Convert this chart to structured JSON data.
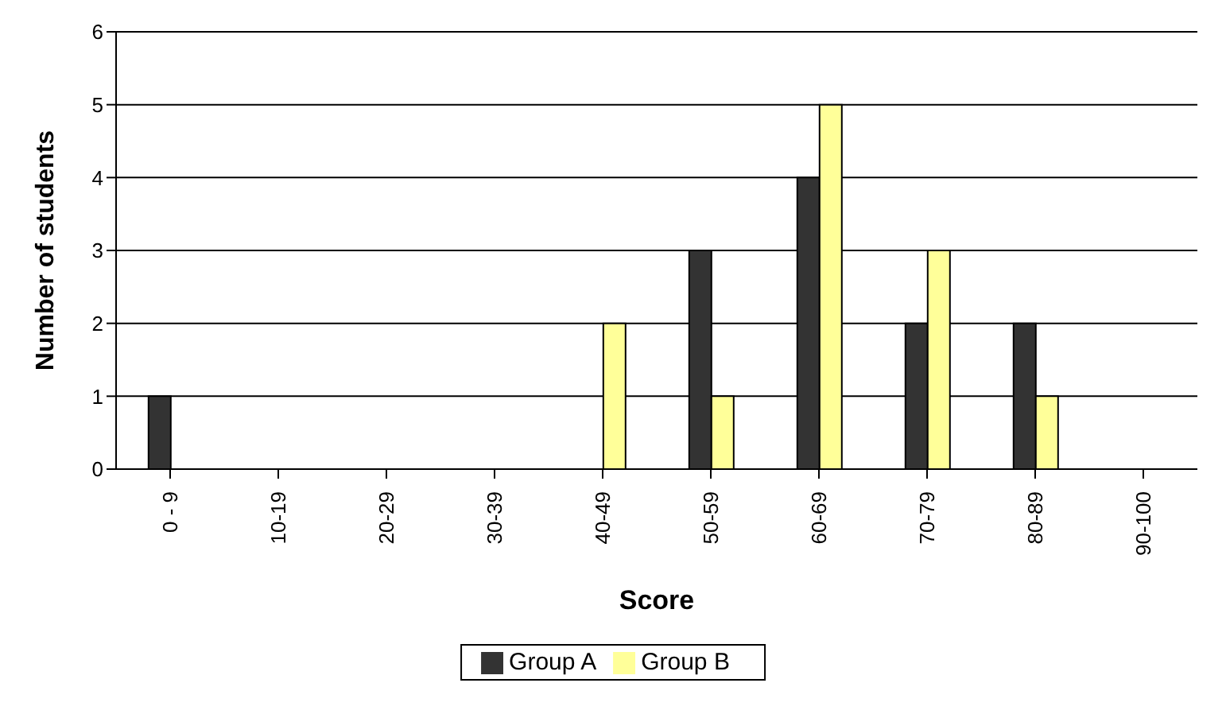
{
  "chart_data": {
    "type": "bar",
    "xlabel": "Score",
    "ylabel": "Number of students",
    "categories": [
      "0 - 9",
      "10-19",
      "20-29",
      "30-39",
      "40-49",
      "50-59",
      "60-69",
      "70-79",
      "80-89",
      "90-100"
    ],
    "series": [
      {
        "name": "Group A",
        "color": "#333333",
        "values": [
          1,
          0,
          0,
          0,
          0,
          3,
          4,
          2,
          2,
          0
        ]
      },
      {
        "name": "Group B",
        "color": "#ffff99",
        "values": [
          0,
          0,
          0,
          0,
          2,
          1,
          5,
          3,
          1,
          0
        ]
      }
    ],
    "ylim": [
      0,
      6
    ],
    "yticks": [
      0,
      1,
      2,
      3,
      4,
      5,
      6
    ],
    "grid": "y",
    "legend": "bottom"
  }
}
